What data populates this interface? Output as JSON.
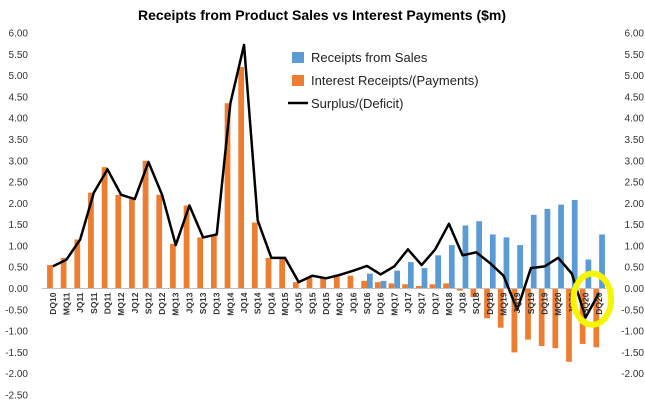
{
  "chart_data": {
    "type": "bar",
    "title": "Receipts from Product Sales vs Interest Payments ($m)",
    "ylim": [
      -2.5,
      6.0
    ],
    "y_tick_step": 0.5,
    "y_ticks_left": [
      "-2.50",
      "-2.00",
      "-1.50",
      "-1.00",
      "-0.50",
      "0.00",
      "0.50",
      "1.00",
      "1.50",
      "2.00",
      "2.50",
      "3.00",
      "3.50",
      "4.00",
      "4.50",
      "5.00",
      "5.50",
      "6.00"
    ],
    "y_ticks_right": [
      "-2.00",
      "-1.50",
      "-1.00",
      "-0.50",
      "0.00",
      "0.50",
      "1.00",
      "1.50",
      "2.00",
      "2.50",
      "3.00",
      "3.50",
      "4.00",
      "4.50",
      "5.00",
      "5.50",
      "6.00"
    ],
    "categories": [
      "DQ10",
      "MQ11",
      "JQ11",
      "SQ11",
      "DQ11",
      "MQ12",
      "JQ12",
      "SQ12",
      "DQ12",
      "MQ13",
      "JQ13",
      "SQ13",
      "DQ13",
      "MQ14",
      "JQ14",
      "SQ14",
      "DQ14",
      "MQ15",
      "JQ15",
      "SQ15",
      "DQ15",
      "MQ16",
      "JQ16",
      "SQ16",
      "DQ16",
      "MQ17",
      "JQ17",
      "SQ17",
      "DQ17",
      "MQ18",
      "JQ18",
      "SQ18",
      "DQ18",
      "MQ19",
      "JQ19",
      "SQ19",
      "DQ19",
      "MQ20",
      "JQ20",
      "SQ20",
      "DQ20"
    ],
    "category_labels": [
      "DQ10",
      "MQ11",
      "JQ11",
      "SQ11",
      "DQ11",
      "MQ12",
      "JQ12",
      "SQ12",
      "DQ12",
      "MQ13",
      "JQ13",
      "SQ13",
      "DQ13",
      "MQ14",
      "JQ14",
      "SQ14",
      "DQ14",
      "MQ15",
      "JQ15",
      "SQ15",
      "DQ15",
      "MQ16",
      "JQ16",
      "SQ16",
      "DQ16",
      "MQ17",
      "JQ17",
      "SQ17",
      "DQ17",
      "MQ18",
      "JQ18",
      "SQ18",
      "DQ18",
      "MQ19",
      "JQ19",
      "SQ19",
      "DQ19",
      "MQ20",
      "JQ20",
      "SQ20",
      "DQ20"
    ],
    "series": [
      {
        "name": "Receipts from Sales",
        "kind": "bar",
        "color": "#5B9BD5",
        "values": [
          0,
          0,
          0,
          0,
          0,
          0,
          0,
          0,
          0,
          0,
          0,
          0,
          0,
          0,
          0,
          0,
          0,
          0,
          0,
          0,
          0,
          0,
          0,
          0.35,
          0.18,
          0.42,
          0.62,
          0.48,
          0.78,
          1.02,
          1.48,
          1.58,
          1.27,
          1.2,
          1.02,
          1.73,
          1.87,
          1.97,
          2.08,
          0.68,
          1.27
        ]
      },
      {
        "name": "Interest Receipts/(Payments)",
        "kind": "bar",
        "color": "#ED7D31",
        "values": [
          0.55,
          0.72,
          1.15,
          2.25,
          2.85,
          2.2,
          2.1,
          3.0,
          2.2,
          1.05,
          1.95,
          1.2,
          1.25,
          4.35,
          5.2,
          1.55,
          0.72,
          0.72,
          0.15,
          0.28,
          0.24,
          0.3,
          0.3,
          0.18,
          0.15,
          0.12,
          0.1,
          0.06,
          0.1,
          0.12,
          -0.05,
          -0.2,
          -0.7,
          -0.92,
          -1.5,
          -1.2,
          -1.35,
          -1.4,
          -1.72,
          -1.3,
          -1.38
        ]
      },
      {
        "name": "Surplus/(Deficit)",
        "kind": "line",
        "color": "#000000",
        "values": [
          0.52,
          0.68,
          1.15,
          2.25,
          2.8,
          2.2,
          2.1,
          2.97,
          2.2,
          1.02,
          1.95,
          1.2,
          1.27,
          4.35,
          5.72,
          1.6,
          0.72,
          0.72,
          0.15,
          0.3,
          0.24,
          0.32,
          0.42,
          0.53,
          0.33,
          0.52,
          0.92,
          0.55,
          0.92,
          1.52,
          0.78,
          0.85,
          0.6,
          0.3,
          -0.5,
          0.48,
          0.52,
          0.72,
          0.35,
          -0.68,
          -0.1
        ]
      }
    ],
    "legend": [
      "Receipts from Sales",
      "Interest Receipts/(Payments)",
      "Surplus/(Deficit)"
    ],
    "legend_position": "top-right",
    "annotations": [
      {
        "type": "highlight-ellipse",
        "color": "#F5F500",
        "x_range": [
          "SQ20",
          "DQ20"
        ],
        "y_range": [
          -0.85,
          0.35
        ]
      }
    ],
    "grid": false
  }
}
